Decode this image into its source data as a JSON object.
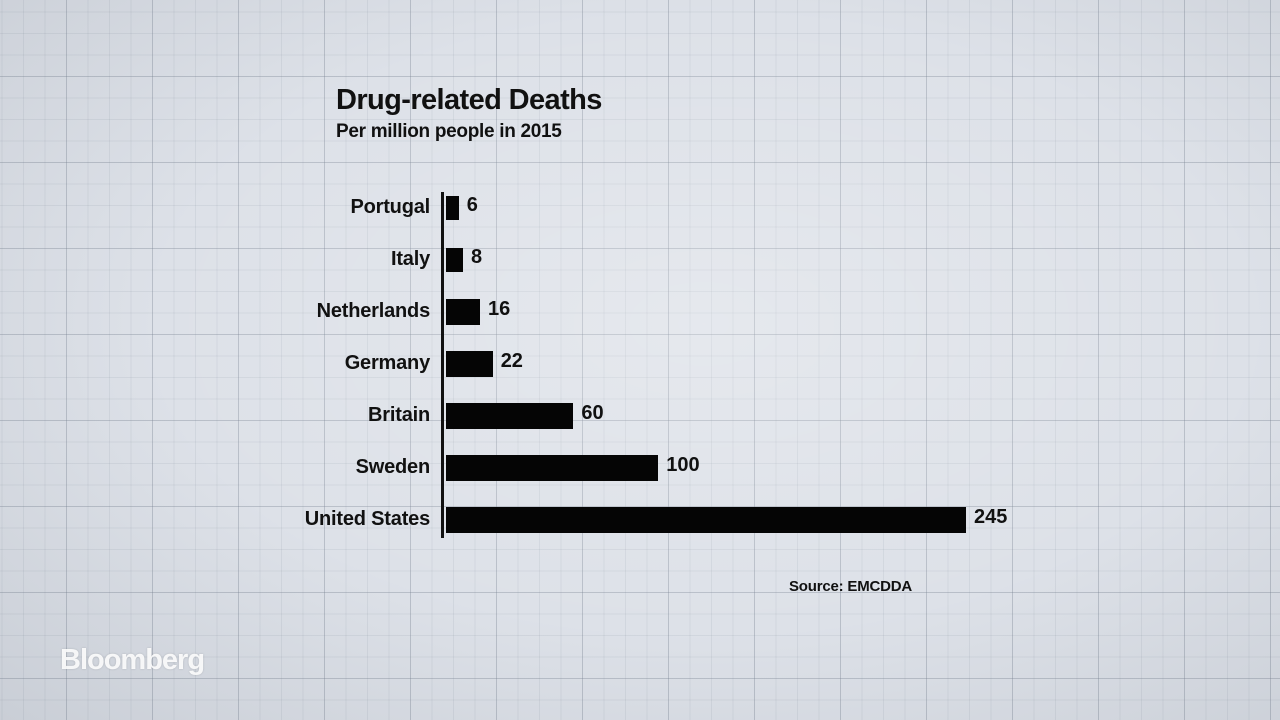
{
  "chart_data": {
    "type": "bar",
    "orientation": "horizontal",
    "title": "Drug-related Deaths",
    "subtitle": "Per million people in 2015",
    "categories": [
      "Portugal",
      "Italy",
      "Netherlands",
      "Germany",
      "Britain",
      "Sweden",
      "United States"
    ],
    "values": [
      6,
      8,
      16,
      22,
      60,
      100,
      245
    ],
    "value_labels": [
      "6",
      "8",
      "16",
      "22",
      "60",
      "100",
      "245"
    ],
    "xlabel": "",
    "ylabel": "",
    "xlim": [
      0,
      245
    ],
    "grid": false,
    "legend": "none",
    "bar_color": "#050505"
  },
  "source": "Source: EMCDDA",
  "brand": "Bloomberg",
  "colors": {
    "background": "#dde1e8",
    "text": "#111111"
  }
}
